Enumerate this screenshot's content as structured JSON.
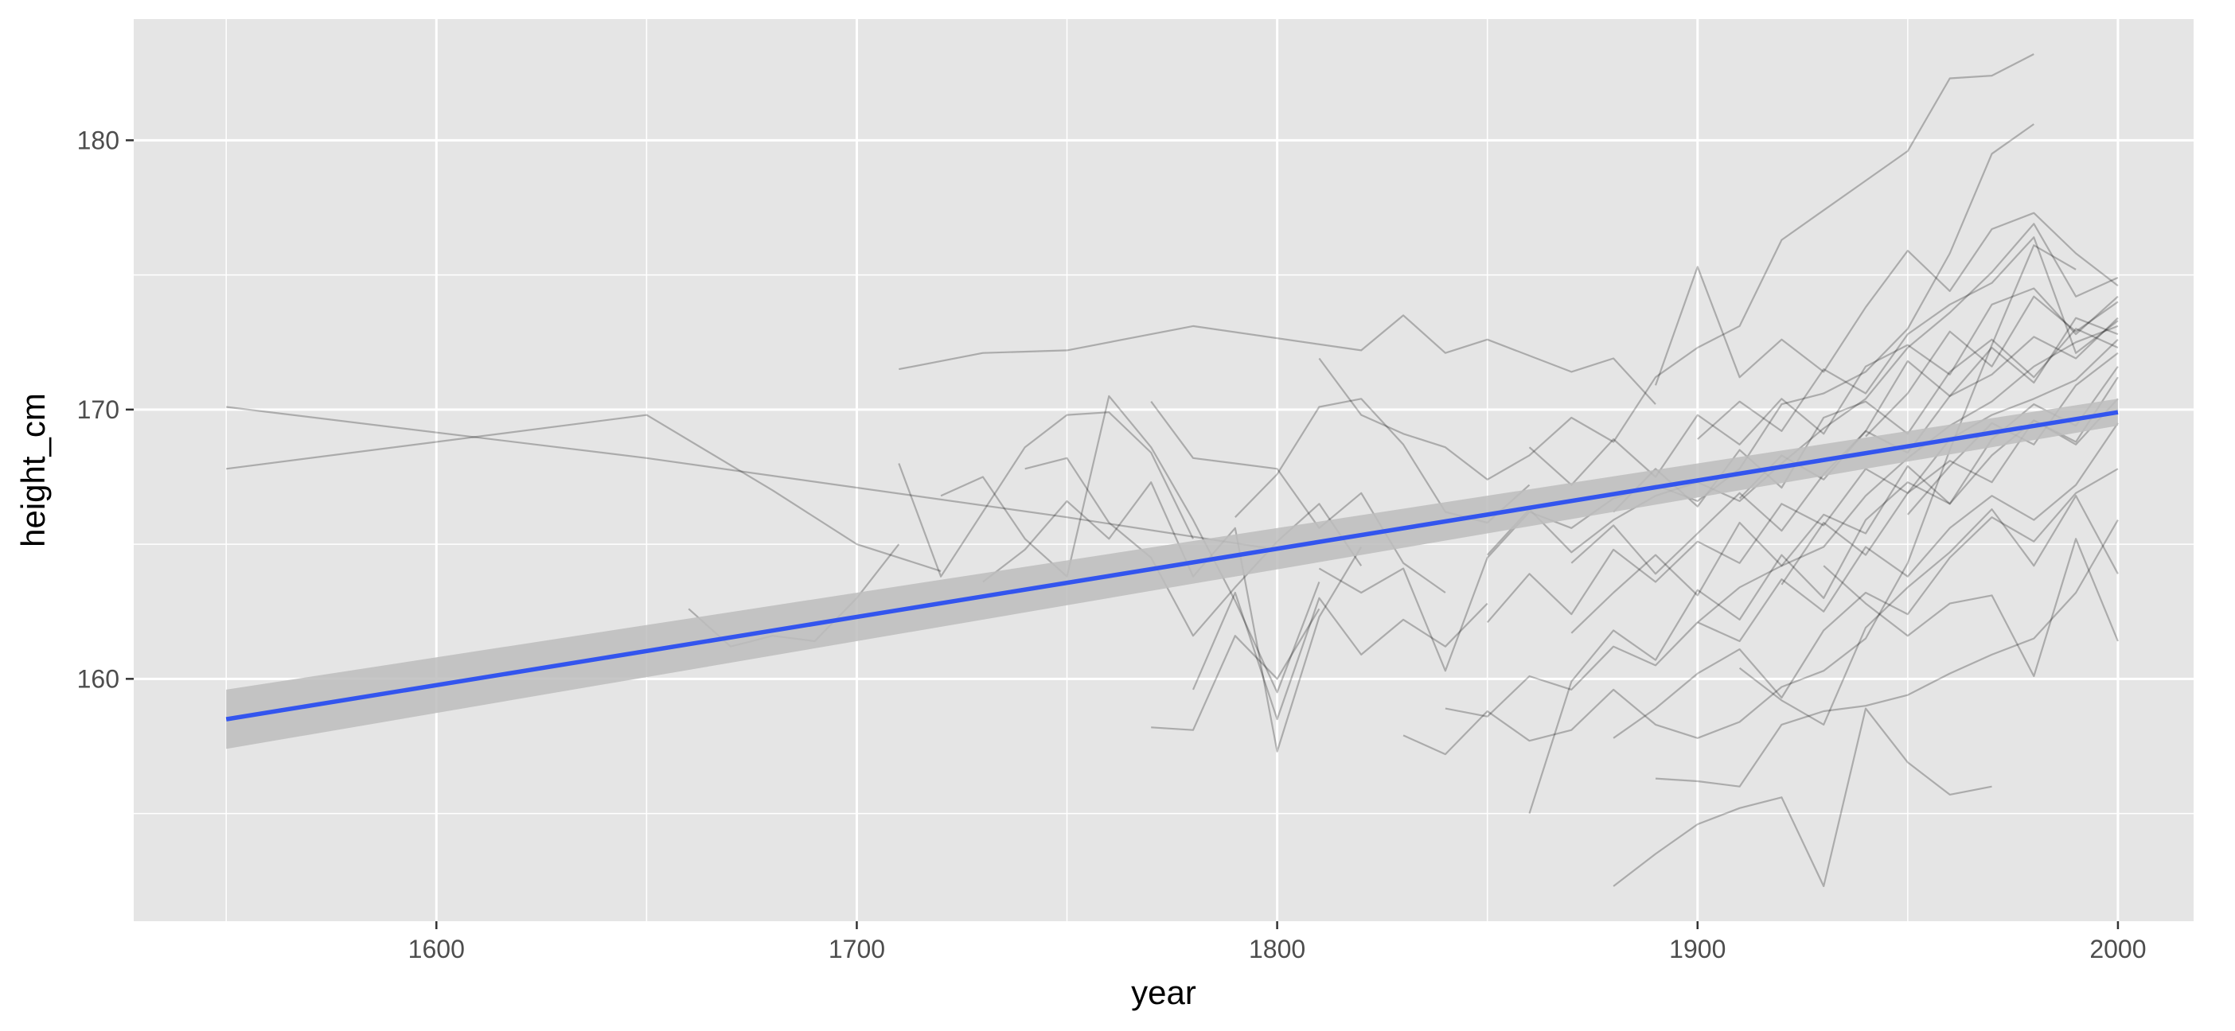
{
  "chart_data": {
    "type": "line",
    "title": "",
    "xlabel": "year",
    "ylabel": "height_cm",
    "xlim": [
      1528,
      2018
    ],
    "ylim": [
      151,
      184.5
    ],
    "x_ticks": [
      1600,
      1700,
      1800,
      1900,
      2000
    ],
    "y_ticks": [
      160,
      170,
      180
    ],
    "grid": true,
    "legend": "none",
    "colors": {
      "panel": "#e5e5e5",
      "grid": "#ffffff",
      "series_line": "#000000",
      "trend_line": "#3355ee",
      "confidence_band": "#bdbdbd"
    },
    "trend": {
      "method": "linear",
      "x": [
        1550,
        2000
      ],
      "y": [
        158.5,
        169.9
      ],
      "band_lower": [
        157.4,
        169.4
      ],
      "band_upper": [
        159.6,
        170.4
      ]
    },
    "series": [
      {
        "x": [
          1550,
          1650,
          1750,
          1800
        ],
        "y": [
          170.1,
          168.2,
          166.0,
          164.8
        ]
      },
      {
        "x": [
          1550,
          1650,
          1680,
          1700,
          1720
        ],
        "y": [
          167.8,
          169.8,
          167.0,
          165.0,
          164.0
        ]
      },
      {
        "x": [
          1710,
          1730,
          1750,
          1780,
          1820,
          1830,
          1840,
          1850,
          1870,
          1880,
          1890
        ],
        "y": [
          171.5,
          172.1,
          172.2,
          173.1,
          172.2,
          173.5,
          172.1,
          172.6,
          171.4,
          171.9,
          170.2
        ]
      },
      {
        "x": [
          1660,
          1670,
          1680,
          1690,
          1700,
          1710
        ],
        "y": [
          162.6,
          161.2,
          161.6,
          161.4,
          163.0,
          165.0
        ]
      },
      {
        "x": [
          1710,
          1720,
          1730,
          1740,
          1750,
          1760,
          1770,
          1780
        ],
        "y": [
          168.0,
          163.8,
          166.2,
          168.6,
          169.8,
          169.9,
          168.4,
          165.2
        ]
      },
      {
        "x": [
          1720,
          1730,
          1740,
          1750,
          1760,
          1770,
          1780,
          1790,
          1800,
          1810
        ],
        "y": [
          166.8,
          167.5,
          165.2,
          163.8,
          170.5,
          168.6,
          165.9,
          162.9,
          159.5,
          163.6
        ]
      },
      {
        "x": [
          1730,
          1740,
          1750,
          1760,
          1770,
          1780,
          1790,
          1800,
          1810,
          1820
        ],
        "y": [
          163.6,
          164.8,
          166.6,
          165.2,
          167.3,
          163.8,
          165.6,
          157.3,
          162.3,
          164.9
        ]
      },
      {
        "x": [
          1740,
          1750,
          1760,
          1770,
          1780,
          1790,
          1800,
          1810,
          1820
        ],
        "y": [
          167.8,
          168.2,
          165.8,
          164.5,
          161.6,
          163.4,
          165.1,
          166.5,
          164.2
        ]
      },
      {
        "x": [
          1770,
          1780,
          1790,
          1800,
          1810,
          1820,
          1830,
          1840
        ],
        "y": [
          170.3,
          168.2,
          168.0,
          167.8,
          165.6,
          166.9,
          164.3,
          163.2
        ]
      },
      {
        "x": [
          1770,
          1780,
          1790,
          1800,
          1810
        ],
        "y": [
          158.2,
          158.1,
          161.6,
          160.0,
          162.6
        ]
      },
      {
        "x": [
          1780,
          1790,
          1800,
          1810,
          1820,
          1830,
          1840,
          1850
        ],
        "y": [
          159.6,
          163.2,
          158.5,
          163.0,
          160.9,
          162.2,
          161.2,
          162.8
        ]
      },
      {
        "x": [
          1790,
          1800,
          1810,
          1820,
          1830,
          1840,
          1850,
          1860
        ],
        "y": [
          166.0,
          167.6,
          170.1,
          170.4,
          168.7,
          166.2,
          165.8,
          167.2
        ]
      },
      {
        "x": [
          1810,
          1820,
          1830,
          1840,
          1850,
          1860,
          1870,
          1880,
          1890,
          1900,
          1910,
          1920,
          1930,
          1940,
          1950,
          1960,
          1970,
          1980
        ],
        "y": [
          171.9,
          169.8,
          169.1,
          168.6,
          167.4,
          168.3,
          169.7,
          168.8,
          171.2,
          172.3,
          173.1,
          176.3,
          177.4,
          178.5,
          179.6,
          182.3,
          182.4,
          183.2
        ]
      },
      {
        "x": [
          1810,
          1820,
          1830,
          1840,
          1850,
          1860,
          1870,
          1880,
          1890,
          1900,
          1910,
          1920,
          1930,
          1940,
          1950,
          1960,
          1970,
          1980
        ],
        "y": [
          164.1,
          163.2,
          164.1,
          160.3,
          164.5,
          166.2,
          165.6,
          166.7,
          167.2,
          166.6,
          167.8,
          170.2,
          170.6,
          171.4,
          173.0,
          175.8,
          179.5,
          180.6
        ]
      },
      {
        "x": [
          1830,
          1840,
          1850,
          1860,
          1870,
          1880,
          1890,
          1900,
          1910,
          1920,
          1930,
          1940,
          1950,
          1960,
          1970,
          1980,
          1990
        ],
        "y": [
          157.9,
          157.2,
          158.8,
          157.7,
          158.1,
          159.6,
          158.3,
          157.8,
          158.4,
          159.7,
          160.3,
          161.5,
          164.3,
          168.5,
          172.4,
          176.1,
          175.2
        ]
      },
      {
        "x": [
          1840,
          1850,
          1860,
          1870,
          1880,
          1890,
          1900,
          1910,
          1920,
          1930,
          1940,
          1950,
          1960,
          1970,
          1980,
          1990,
          2000
        ],
        "y": [
          158.9,
          158.6,
          160.1,
          159.6,
          161.2,
          160.5,
          162.1,
          163.4,
          164.2,
          164.9,
          166.8,
          168.2,
          169.4,
          170.3,
          171.6,
          172.5,
          173.1
        ]
      },
      {
        "x": [
          1850,
          1860,
          1870,
          1880,
          1890,
          1900,
          1910,
          1920,
          1930,
          1940,
          1950,
          1960,
          1970,
          1980,
          1990,
          2000
        ],
        "y": [
          164.6,
          166.3,
          164.7,
          165.9,
          166.8,
          167.3,
          166.6,
          168.0,
          169.3,
          170.4,
          172.3,
          173.6,
          175.1,
          176.9,
          174.2,
          174.9
        ]
      },
      {
        "x": [
          1850,
          1860,
          1870,
          1880,
          1890,
          1900,
          1910,
          1920,
          1930,
          1940,
          1950,
          1960,
          1970,
          1980,
          1990,
          2000
        ],
        "y": [
          162.1,
          163.9,
          162.4,
          164.8,
          163.6,
          165.1,
          164.3,
          166.5,
          165.7,
          167.8,
          166.9,
          168.9,
          169.8,
          170.4,
          171.1,
          172.6
        ]
      },
      {
        "x": [
          1860,
          1870,
          1880,
          1890,
          1900,
          1910,
          1920,
          1930,
          1940,
          1950,
          1960,
          1970,
          1980,
          1990,
          2000
        ],
        "y": [
          155.0,
          159.9,
          161.8,
          160.7,
          163.3,
          162.2,
          164.6,
          163.0,
          165.9,
          167.3,
          166.5,
          168.9,
          170.2,
          169.4,
          171.6
        ]
      },
      {
        "x": [
          1860,
          1870,
          1880,
          1890,
          1900,
          1910,
          1920,
          1930,
          1940,
          1950,
          1960,
          1970,
          1980,
          1990,
          2000
        ],
        "y": [
          168.6,
          167.2,
          168.9,
          167.5,
          169.8,
          168.7,
          170.4,
          169.1,
          171.6,
          172.4,
          171.3,
          173.9,
          174.5,
          172.8,
          174.2
        ]
      },
      {
        "x": [
          1870,
          1880,
          1890,
          1900,
          1910,
          1920,
          1930,
          1940,
          1950,
          1960,
          1970,
          1980,
          1990,
          2000
        ],
        "y": [
          164.3,
          165.7,
          163.9,
          165.4,
          166.9,
          165.5,
          167.6,
          169.2,
          168.4,
          170.5,
          171.3,
          172.7,
          171.9,
          173.4
        ]
      },
      {
        "x": [
          1870,
          1880,
          1890,
          1900,
          1910,
          1920,
          1930,
          1940,
          1950,
          1960,
          1970,
          1980,
          1990,
          2000
        ],
        "y": [
          161.7,
          163.2,
          164.6,
          163.1,
          165.8,
          164.2,
          166.1,
          165.4,
          167.9,
          166.5,
          168.3,
          169.6,
          168.7,
          170.4
        ]
      },
      {
        "x": [
          1880,
          1890,
          1900,
          1910,
          1920,
          1930,
          1940,
          1950,
          1960,
          1970,
          1980,
          1990,
          2000
        ],
        "y": [
          157.8,
          158.9,
          160.2,
          161.1,
          159.3,
          161.8,
          163.2,
          162.4,
          164.5,
          166.0,
          165.1,
          166.9,
          167.8
        ]
      },
      {
        "x": [
          1880,
          1890,
          1900,
          1910,
          1920,
          1930,
          1940,
          1950,
          1960,
          1970,
          1980,
          1990,
          2000
        ],
        "y": [
          166.2,
          167.8,
          166.4,
          168.5,
          167.1,
          169.7,
          170.3,
          169.1,
          171.4,
          172.6,
          171.2,
          173.0,
          172.3
        ]
      },
      {
        "x": [
          1890,
          1900,
          1910,
          1920,
          1930,
          1940,
          1950,
          1960,
          1970,
          1980,
          1990,
          2000
        ],
        "y": [
          170.9,
          175.3,
          171.2,
          172.6,
          171.4,
          173.8,
          175.9,
          174.4,
          176.7,
          177.3,
          175.8,
          174.6
        ]
      },
      {
        "x": [
          1890,
          1900,
          1910,
          1920,
          1930,
          1940,
          1950,
          1960,
          1970,
          1980,
          1990,
          2000
        ],
        "y": [
          156.3,
          156.2,
          156.0,
          158.3,
          158.8,
          159.0,
          159.4,
          160.2,
          160.9,
          161.5,
          163.2,
          165.9
        ]
      },
      {
        "x": [
          1880,
          1890,
          1900,
          1910,
          1920,
          1930,
          1940,
          1950,
          1960,
          1970
        ],
        "y": [
          152.3,
          153.5,
          154.6,
          155.2,
          155.6,
          152.3,
          158.9,
          156.9,
          155.7,
          156.0
        ]
      },
      {
        "x": [
          1900,
          1910,
          1920,
          1930,
          1940,
          1950,
          1960,
          1970,
          1980,
          1990,
          2000
        ],
        "y": [
          162.1,
          161.4,
          163.7,
          162.5,
          164.9,
          163.8,
          165.6,
          166.8,
          165.9,
          167.2,
          169.5
        ]
      },
      {
        "x": [
          1900,
          1910,
          1920,
          1930,
          1940,
          1950,
          1960,
          1970,
          1980,
          1990,
          2000
        ],
        "y": [
          168.9,
          170.3,
          169.2,
          171.5,
          170.6,
          172.8,
          173.9,
          174.7,
          176.4,
          172.1,
          173.3
        ]
      },
      {
        "x": [
          1910,
          1920,
          1930,
          1940,
          1950,
          1960,
          1970,
          1980,
          1990,
          2000
        ],
        "y": [
          160.4,
          159.2,
          158.3,
          161.9,
          163.4,
          164.7,
          166.3,
          164.2,
          166.8,
          163.9
        ]
      },
      {
        "x": [
          1910,
          1920,
          1930,
          1940,
          1950,
          1960,
          1970,
          1980,
          1990,
          2000
        ],
        "y": [
          166.7,
          168.3,
          167.4,
          169.2,
          171.8,
          170.5,
          172.3,
          171.0,
          173.4,
          172.8
        ]
      },
      {
        "x": [
          1920,
          1930,
          1940,
          1950,
          1960,
          1970,
          1980,
          1990,
          2000
        ],
        "y": [
          163.5,
          165.8,
          164.6,
          166.9,
          168.1,
          167.3,
          169.6,
          168.8,
          171.2
        ]
      },
      {
        "x": [
          1930,
          1940,
          1950,
          1960,
          1970,
          1980,
          1990,
          2000
        ],
        "y": [
          164.2,
          162.8,
          161.6,
          162.8,
          163.1,
          160.1,
          165.2,
          161.4
        ]
      },
      {
        "x": [
          1940,
          1950,
          1960,
          1970,
          1980,
          1990,
          2000
        ],
        "y": [
          169.0,
          170.6,
          172.9,
          171.6,
          174.2,
          172.9,
          174.0
        ]
      },
      {
        "x": [
          1950,
          1960,
          1970,
          1980,
          1990,
          2000
        ],
        "y": [
          166.1,
          167.9,
          169.5,
          168.7,
          170.9,
          172.1
        ]
      }
    ]
  }
}
